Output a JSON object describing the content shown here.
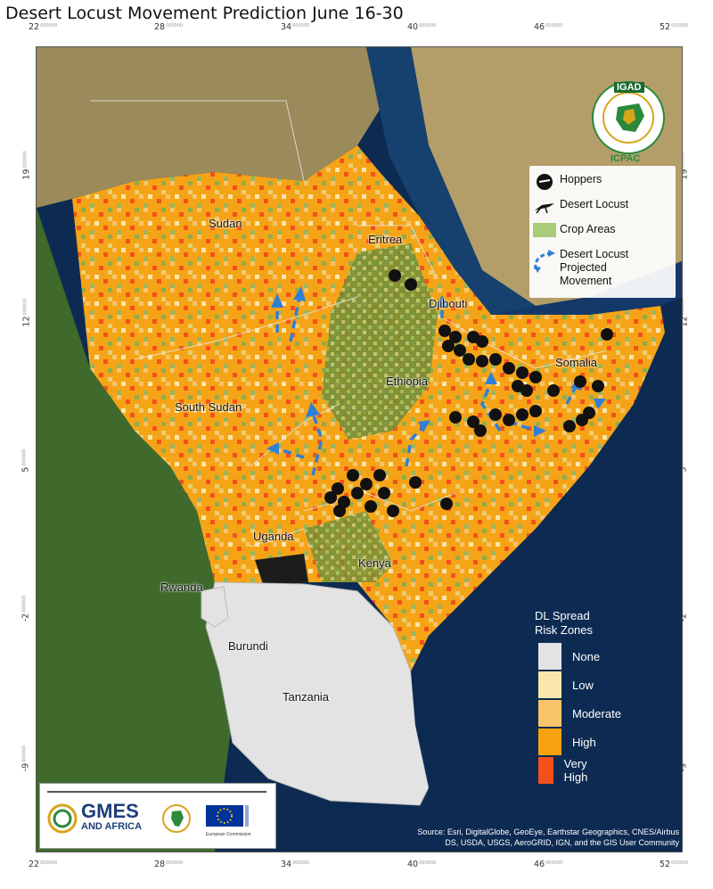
{
  "title": "Desert Locust Movement Prediction June 16-30",
  "axes": {
    "x_ticks": [
      "22",
      "28",
      "34",
      "40",
      "46",
      "52"
    ],
    "y_ticks": [
      "19",
      "12",
      "5",
      "-2",
      "-9"
    ],
    "tick_suffix": "000000"
  },
  "places": {
    "sudan": "Sudan",
    "eritrea": "Eritrea",
    "djibouti": "Djibouti",
    "ethiopia": "Ethiopia",
    "somalia": "Somalia",
    "south_sudan": "South Sudan",
    "uganda": "Uganda",
    "kenya": "Kenya",
    "rwanda": "Rwanda",
    "burundi": "Burundi",
    "tanzania": "Tanzania"
  },
  "legend": {
    "hoppers": "Hoppers",
    "desert_locust": "Desert Locust",
    "crop_areas": "Crop Areas",
    "movement": "Desert Locust Projected Movement",
    "movement_line1": "Desert Locust",
    "movement_line2": "Projected",
    "movement_line3": "Movement"
  },
  "risk_legend": {
    "title": "DL Spread Risk Zones",
    "title_line1": "DL Spread",
    "title_line2": "Risk Zones",
    "zones": [
      {
        "label": "None",
        "color": "#e3e3e3"
      },
      {
        "label": "Low",
        "color": "#fbe7ab"
      },
      {
        "label": "Moderate",
        "color": "#f8c46a"
      },
      {
        "label": "High",
        "color": "#f6a20f"
      },
      {
        "label": "Very High",
        "color": "#f4501c"
      }
    ]
  },
  "igad_logo": {
    "name": "IGAD",
    "footer": "ICPAC",
    "ring_text": "INTERGOVERNMENTAL AUTHORITY ON DEVELOPMENT"
  },
  "partners": {
    "gmes_line1": "GMES",
    "gmes_line2": "AND AFRICA",
    "eu_caption": "European Commission"
  },
  "attribution_line1": "Source: Esri, DigitalGlobe, GeoEye, Earthstar Geographics, CNES/Airbus",
  "attribution_line2": "DS, USDA, USGS, AeroGRID, IGN, and the GIS User Community",
  "colors": {
    "sea": "#0d2b52",
    "land": "#7a7a3e",
    "arrow": "#2f7fd6",
    "symbol": "#111111"
  }
}
